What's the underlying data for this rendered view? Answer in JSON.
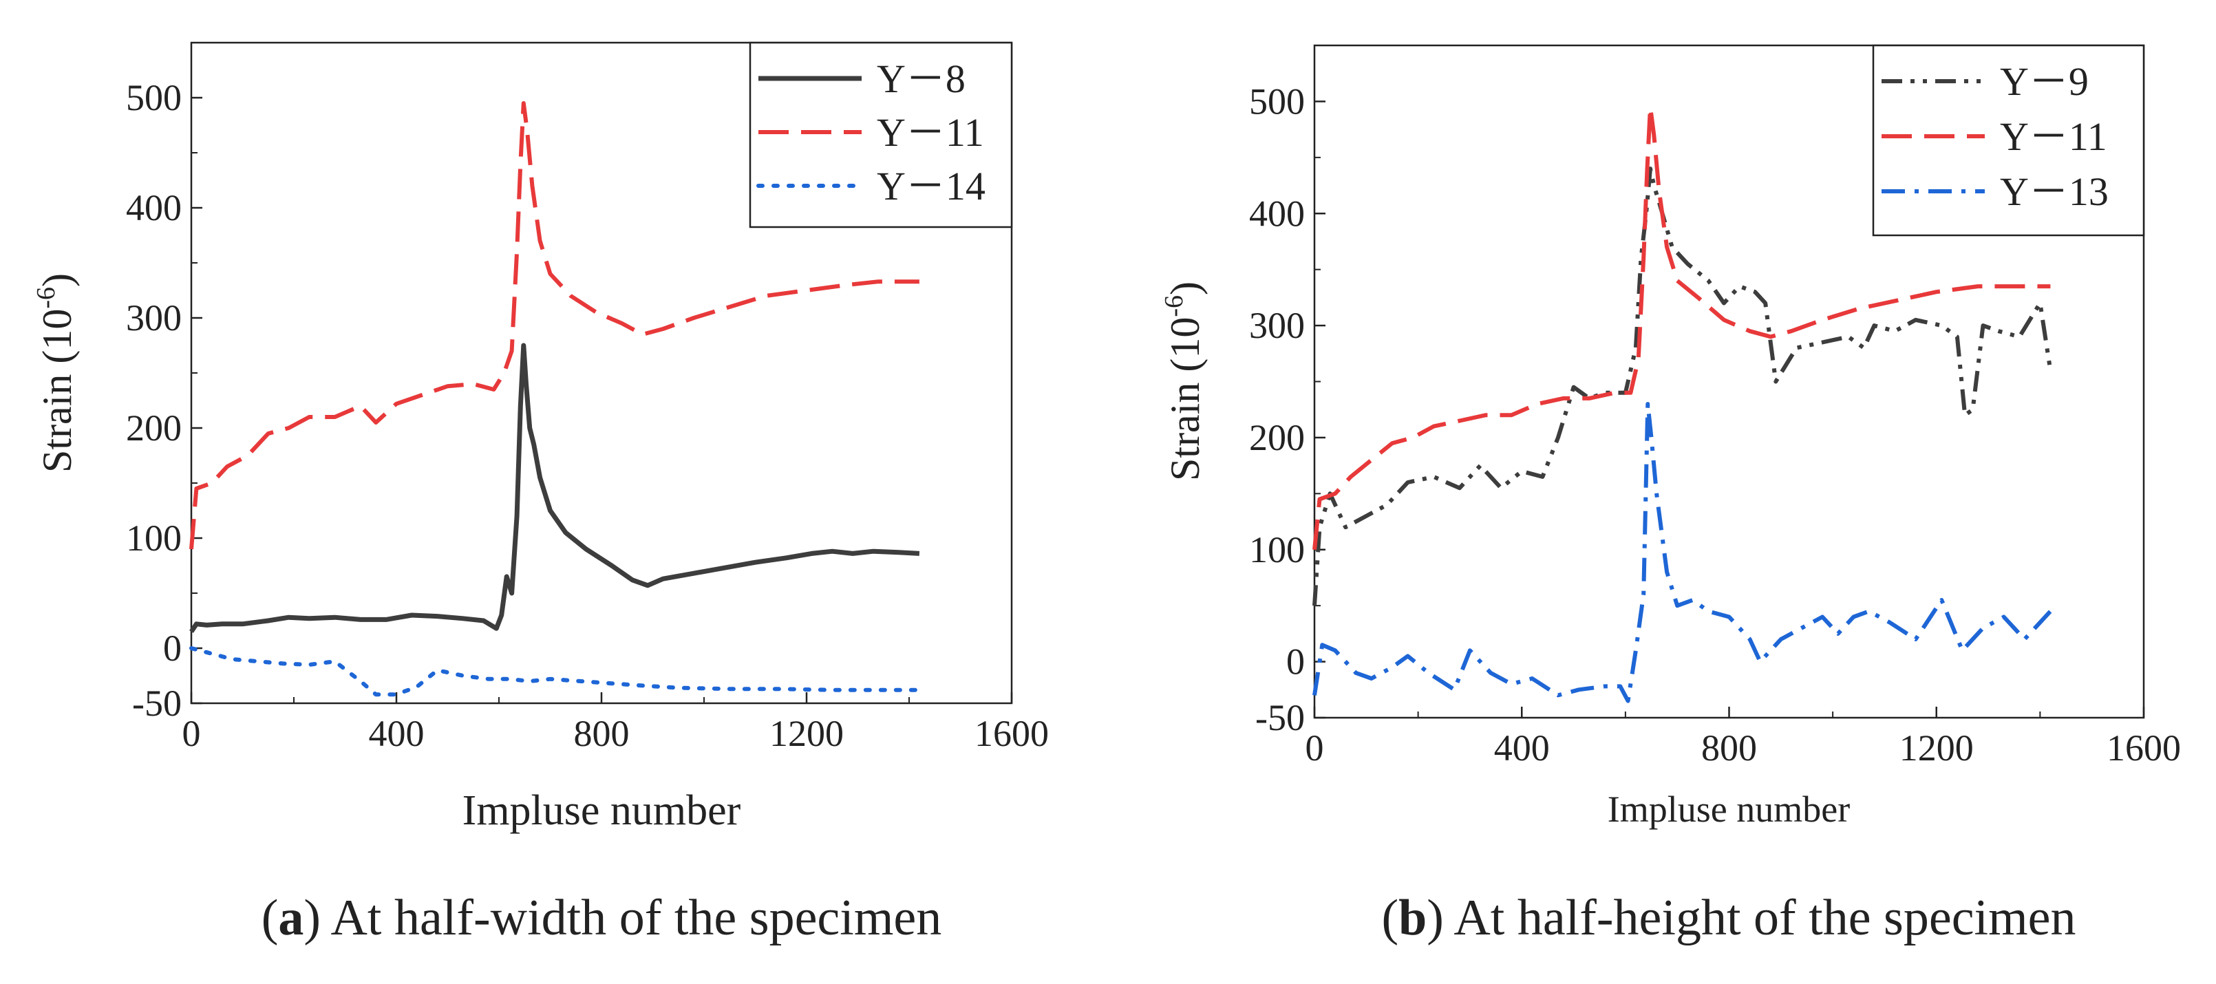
{
  "chart_data": [
    {
      "type": "line",
      "caption_letter": "a",
      "caption_text": "At half-width of the specimen",
      "xlabel": "Impluse number",
      "ylabel_main": "Strain (10",
      "ylabel_sup": "-6",
      "ylabel_end": ")",
      "xlim": [
        0,
        1600
      ],
      "ylim": [
        -50,
        550
      ],
      "xticks": [
        0,
        400,
        800,
        1200,
        1600
      ],
      "yticks": [
        -50,
        0,
        100,
        200,
        300,
        400,
        500
      ],
      "grid": false,
      "legend_position": "top-right",
      "series": [
        {
          "name": "Y－8",
          "color": "#3d3d3d",
          "dash": "solid",
          "points": [
            [
              0,
              15
            ],
            [
              10,
              22
            ],
            [
              30,
              21
            ],
            [
              60,
              22
            ],
            [
              100,
              22
            ],
            [
              150,
              25
            ],
            [
              190,
              28
            ],
            [
              230,
              27
            ],
            [
              280,
              28
            ],
            [
              330,
              26
            ],
            [
              380,
              26
            ],
            [
              430,
              30
            ],
            [
              480,
              29
            ],
            [
              530,
              27
            ],
            [
              570,
              25
            ],
            [
              595,
              18
            ],
            [
              605,
              30
            ],
            [
              615,
              65
            ],
            [
              625,
              50
            ],
            [
              635,
              120
            ],
            [
              642,
              220
            ],
            [
              648,
              275
            ],
            [
              653,
              240
            ],
            [
              660,
              200
            ],
            [
              668,
              185
            ],
            [
              680,
              155
            ],
            [
              700,
              125
            ],
            [
              730,
              105
            ],
            [
              770,
              90
            ],
            [
              820,
              75
            ],
            [
              860,
              62
            ],
            [
              890,
              57
            ],
            [
              920,
              63
            ],
            [
              980,
              68
            ],
            [
              1040,
              73
            ],
            [
              1100,
              78
            ],
            [
              1160,
              82
            ],
            [
              1210,
              86
            ],
            [
              1250,
              88
            ],
            [
              1290,
              86
            ],
            [
              1330,
              88
            ],
            [
              1380,
              87
            ],
            [
              1420,
              86
            ]
          ]
        },
        {
          "name": "Y－11",
          "color": "#e8393a",
          "dash": "dashed",
          "points": [
            [
              0,
              90
            ],
            [
              10,
              145
            ],
            [
              40,
              150
            ],
            [
              70,
              165
            ],
            [
              110,
              175
            ],
            [
              150,
              195
            ],
            [
              190,
              200
            ],
            [
              230,
              210
            ],
            [
              280,
              210
            ],
            [
              330,
              220
            ],
            [
              360,
              205
            ],
            [
              400,
              222
            ],
            [
              450,
              230
            ],
            [
              500,
              238
            ],
            [
              550,
              240
            ],
            [
              590,
              235
            ],
            [
              610,
              250
            ],
            [
              625,
              270
            ],
            [
              635,
              360
            ],
            [
              642,
              440
            ],
            [
              648,
              495
            ],
            [
              655,
              470
            ],
            [
              665,
              420
            ],
            [
              680,
              370
            ],
            [
              700,
              340
            ],
            [
              740,
              320
            ],
            [
              790,
              305
            ],
            [
              840,
              295
            ],
            [
              880,
              285
            ],
            [
              920,
              290
            ],
            [
              980,
              300
            ],
            [
              1050,
              310
            ],
            [
              1120,
              320
            ],
            [
              1200,
              325
            ],
            [
              1280,
              330
            ],
            [
              1340,
              333
            ],
            [
              1420,
              333
            ]
          ]
        },
        {
          "name": "Y－14",
          "color": "#1e66d6",
          "dash": "dotted",
          "points": [
            [
              0,
              0
            ],
            [
              40,
              -5
            ],
            [
              80,
              -10
            ],
            [
              130,
              -12
            ],
            [
              180,
              -14
            ],
            [
              230,
              -15
            ],
            [
              280,
              -12
            ],
            [
              330,
              -30
            ],
            [
              360,
              -42
            ],
            [
              400,
              -42
            ],
            [
              440,
              -35
            ],
            [
              480,
              -20
            ],
            [
              530,
              -25
            ],
            [
              580,
              -28
            ],
            [
              620,
              -28
            ],
            [
              660,
              -30
            ],
            [
              700,
              -28
            ],
            [
              760,
              -30
            ],
            [
              820,
              -32
            ],
            [
              880,
              -34
            ],
            [
              950,
              -36
            ],
            [
              1050,
              -37
            ],
            [
              1150,
              -37
            ],
            [
              1250,
              -38
            ],
            [
              1350,
              -38
            ],
            [
              1420,
              -38
            ]
          ]
        }
      ]
    },
    {
      "type": "line",
      "caption_letter": "b",
      "caption_text": "At half-height of the specimen",
      "xlabel": "Impluse number",
      "ylabel_main": "Strain (10",
      "ylabel_sup": "-6",
      "ylabel_end": ")",
      "xlim": [
        0,
        1600
      ],
      "ylim": [
        -50,
        550
      ],
      "xticks": [
        0,
        400,
        800,
        1200,
        1600
      ],
      "yticks": [
        -50,
        0,
        100,
        200,
        300,
        400,
        500
      ],
      "grid": false,
      "legend_position": "top-right",
      "series": [
        {
          "name": "Y－9",
          "color": "#3d3d3d",
          "dash": "dash-dot-dot",
          "points": [
            [
              0,
              50
            ],
            [
              10,
              120
            ],
            [
              30,
              150
            ],
            [
              60,
              120
            ],
            [
              100,
              130
            ],
            [
              140,
              140
            ],
            [
              180,
              160
            ],
            [
              230,
              165
            ],
            [
              280,
              155
            ],
            [
              320,
              175
            ],
            [
              360,
              155
            ],
            [
              400,
              170
            ],
            [
              440,
              165
            ],
            [
              470,
              200
            ],
            [
              500,
              245
            ],
            [
              530,
              235
            ],
            [
              560,
              240
            ],
            [
              600,
              240
            ],
            [
              620,
              280
            ],
            [
              630,
              360
            ],
            [
              640,
              400
            ],
            [
              648,
              440
            ],
            [
              655,
              425
            ],
            [
              665,
              410
            ],
            [
              690,
              370
            ],
            [
              720,
              355
            ],
            [
              760,
              340
            ],
            [
              790,
              320
            ],
            [
              820,
              335
            ],
            [
              850,
              330
            ],
            [
              870,
              320
            ],
            [
              890,
              250
            ],
            [
              930,
              280
            ],
            [
              980,
              285
            ],
            [
              1030,
              290
            ],
            [
              1060,
              280
            ],
            [
              1080,
              300
            ],
            [
              1120,
              295
            ],
            [
              1160,
              305
            ],
            [
              1210,
              300
            ],
            [
              1240,
              290
            ],
            [
              1255,
              220
            ],
            [
              1270,
              225
            ],
            [
              1290,
              300
            ],
            [
              1320,
              295
            ],
            [
              1360,
              290
            ],
            [
              1400,
              320
            ],
            [
              1420,
              260
            ]
          ]
        },
        {
          "name": "Y－11",
          "color": "#e8393a",
          "dash": "dashed",
          "points": [
            [
              0,
              100
            ],
            [
              10,
              145
            ],
            [
              40,
              150
            ],
            [
              70,
              165
            ],
            [
              110,
              180
            ],
            [
              150,
              195
            ],
            [
              190,
              200
            ],
            [
              230,
              210
            ],
            [
              280,
              215
            ],
            [
              330,
              220
            ],
            [
              380,
              220
            ],
            [
              430,
              230
            ],
            [
              480,
              235
            ],
            [
              530,
              235
            ],
            [
              580,
              240
            ],
            [
              610,
              240
            ],
            [
              625,
              270
            ],
            [
              635,
              360
            ],
            [
              642,
              440
            ],
            [
              648,
              495
            ],
            [
              655,
              470
            ],
            [
              665,
              420
            ],
            [
              680,
              370
            ],
            [
              700,
              340
            ],
            [
              740,
              325
            ],
            [
              790,
              305
            ],
            [
              840,
              295
            ],
            [
              880,
              290
            ],
            [
              920,
              295
            ],
            [
              980,
              305
            ],
            [
              1050,
              315
            ],
            [
              1120,
              322
            ],
            [
              1200,
              330
            ],
            [
              1280,
              335
            ],
            [
              1340,
              335
            ],
            [
              1420,
              335
            ]
          ]
        },
        {
          "name": "Y－13",
          "color": "#1e66d6",
          "dash": "dash-dot",
          "points": [
            [
              0,
              -30
            ],
            [
              15,
              15
            ],
            [
              40,
              10
            ],
            [
              80,
              -10
            ],
            [
              110,
              -15
            ],
            [
              150,
              -5
            ],
            [
              180,
              5
            ],
            [
              220,
              -10
            ],
            [
              270,
              -25
            ],
            [
              300,
              10
            ],
            [
              340,
              -10
            ],
            [
              380,
              -20
            ],
            [
              420,
              -15
            ],
            [
              470,
              -30
            ],
            [
              510,
              -25
            ],
            [
              560,
              -22
            ],
            [
              590,
              -22
            ],
            [
              605,
              -35
            ],
            [
              620,
              10
            ],
            [
              635,
              60
            ],
            [
              643,
              230
            ],
            [
              650,
              200
            ],
            [
              660,
              150
            ],
            [
              680,
              80
            ],
            [
              700,
              50
            ],
            [
              730,
              55
            ],
            [
              760,
              45
            ],
            [
              800,
              40
            ],
            [
              840,
              20
            ],
            [
              860,
              0
            ],
            [
              900,
              20
            ],
            [
              940,
              30
            ],
            [
              980,
              40
            ],
            [
              1010,
              25
            ],
            [
              1040,
              40
            ],
            [
              1070,
              45
            ],
            [
              1110,
              35
            ],
            [
              1160,
              20
            ],
            [
              1210,
              55
            ],
            [
              1250,
              10
            ],
            [
              1290,
              30
            ],
            [
              1330,
              40
            ],
            [
              1370,
              20
            ],
            [
              1420,
              45
            ]
          ]
        }
      ]
    }
  ]
}
